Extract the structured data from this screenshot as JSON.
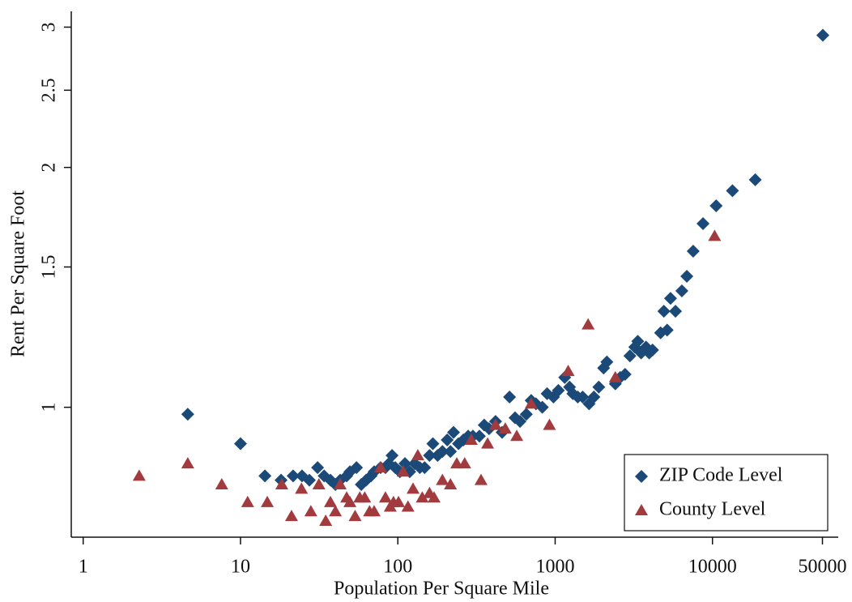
{
  "chart_data": {
    "type": "scatter",
    "x_label": "Population Per Square Mile",
    "y_label": "Rent Per Square Foot",
    "xscale": "log",
    "yscale": "log",
    "xlim": [
      0.84,
      63000
    ],
    "ylim": [
      0.687,
      3.14
    ],
    "xticks": [
      1,
      10,
      100,
      1000,
      10000,
      50000
    ],
    "yticks": [
      1,
      1.5,
      2,
      2.5,
      3
    ],
    "grid": false,
    "legend": "lower right",
    "series": [
      {
        "name": "ZIP Code Level",
        "color": "#1c4a78",
        "marker": "diamond",
        "x": [
          4.62,
          10,
          14.3,
          18.1,
          21.6,
          24.6,
          27.4,
          30.9,
          34.0,
          37.3,
          40.1,
          43.0,
          47.3,
          49.6,
          54.6,
          58.6,
          62.9,
          67.5,
          70.7,
          77.7,
          83.4,
          87.7,
          91.9,
          96.3,
          103,
          111,
          119,
          128,
          138,
          148,
          159,
          167,
          179,
          192,
          206,
          216,
          226,
          243,
          261,
          280,
          300,
          330,
          354,
          380,
          418,
          460,
          513,
          556,
          598,
          656,
          704,
          755,
          829,
          889,
          976,
          1048,
          1150,
          1235,
          1296,
          1392,
          1495,
          1643,
          1763,
          1894,
          2033,
          2132,
          2413,
          2591,
          2782,
          2987,
          3207,
          3350,
          3520,
          3780,
          3960,
          4160,
          4680,
          4910,
          5150,
          5410,
          5820,
          6390,
          6870,
          7540,
          8710,
          10550,
          13400,
          18700,
          50300
        ],
        "values": [
          0.98,
          0.9,
          0.82,
          0.81,
          0.82,
          0.82,
          0.81,
          0.84,
          0.82,
          0.81,
          0.8,
          0.81,
          0.82,
          0.83,
          0.84,
          0.8,
          0.81,
          0.82,
          0.83,
          0.84,
          0.84,
          0.85,
          0.87,
          0.84,
          0.83,
          0.85,
          0.83,
          0.85,
          0.84,
          0.84,
          0.87,
          0.9,
          0.87,
          0.88,
          0.91,
          0.88,
          0.93,
          0.9,
          0.91,
          0.92,
          0.92,
          0.92,
          0.95,
          0.94,
          0.96,
          0.93,
          1.03,
          0.97,
          0.96,
          0.98,
          1.02,
          1.01,
          1.0,
          1.04,
          1.03,
          1.05,
          1.09,
          1.06,
          1.04,
          1.03,
          1.03,
          1.01,
          1.03,
          1.06,
          1.12,
          1.14,
          1.07,
          1.09,
          1.1,
          1.16,
          1.19,
          1.21,
          1.17,
          1.19,
          1.17,
          1.18,
          1.24,
          1.32,
          1.25,
          1.37,
          1.32,
          1.4,
          1.46,
          1.57,
          1.7,
          1.79,
          1.87,
          1.93,
          2.93
        ]
      },
      {
        "name": "County Level",
        "color": "#a23b3e",
        "marker": "triangle",
        "x": [
          2.27,
          4.62,
          7.6,
          11.1,
          14.8,
          18.3,
          21.1,
          24.4,
          28.0,
          31.5,
          34.8,
          37.3,
          40.1,
          43.0,
          47.3,
          49.6,
          53.5,
          57.3,
          61.6,
          66.1,
          70.7,
          77.7,
          83.4,
          89.5,
          93.8,
          101,
          108,
          116,
          125,
          134,
          143,
          159,
          170,
          192,
          216,
          237,
          266,
          293,
          338,
          372,
          418,
          482,
          570,
          704,
          920,
          1210,
          1620,
          2413,
          10320
        ],
        "values": [
          0.82,
          0.85,
          0.8,
          0.76,
          0.76,
          0.8,
          0.73,
          0.79,
          0.74,
          0.8,
          0.72,
          0.76,
          0.74,
          0.8,
          0.77,
          0.76,
          0.73,
          0.77,
          0.77,
          0.74,
          0.74,
          0.84,
          0.77,
          0.75,
          0.76,
          0.76,
          0.83,
          0.75,
          0.79,
          0.87,
          0.77,
          0.78,
          0.77,
          0.81,
          0.8,
          0.85,
          0.85,
          0.91,
          0.81,
          0.9,
          0.95,
          0.94,
          0.92,
          1.01,
          0.95,
          1.11,
          1.27,
          1.09,
          1.64
        ]
      }
    ]
  }
}
